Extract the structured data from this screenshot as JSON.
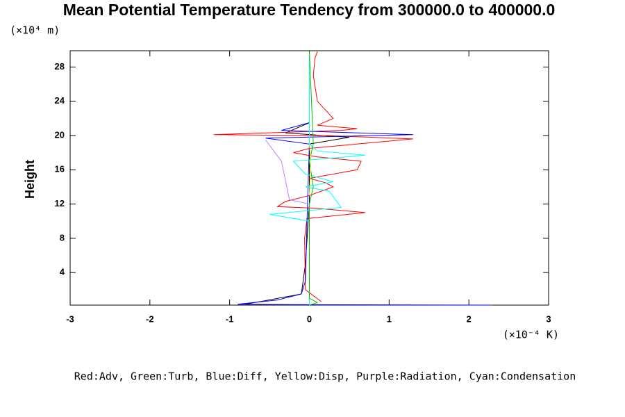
{
  "chart_data": {
    "type": "line",
    "title": "Mean Potential Temperature Tendency from 300000.0 to 400000.0",
    "y_unit": "(×10⁴ m)",
    "ylabel": "Height",
    "x_unit": "(×10⁻⁴ K)",
    "legend_text": "Red:Adv, Green:Turb, Blue:Diff, Yellow:Disp, Purple:Radiation, Cyan:Condensation",
    "xlim": [
      -3,
      3
    ],
    "ylim": [
      0.2,
      29.9
    ],
    "xticks": [
      -3,
      -2,
      -1,
      0,
      1,
      2,
      3
    ],
    "yticks": [
      4,
      8,
      12,
      16,
      20,
      24,
      28
    ],
    "series": [
      {
        "color": "#000000",
        "x": [
          -0.8,
          -0.1,
          -0.05,
          0.0,
          0.0,
          0.5,
          -0.3,
          0.0,
          0.0
        ],
        "y": [
          0.3,
          1.5,
          5,
          12,
          19,
          19.8,
          20.3,
          21.5,
          29.8
        ]
      },
      {
        "color": "#ff0000",
        "x": [
          0.15,
          -0.05,
          -0.06,
          -0.03,
          0.7,
          0.1,
          -0.4,
          -0.3,
          0.0,
          0.3,
          0.2,
          0.0,
          0.6,
          0.65,
          0.1,
          -0.2,
          0.0,
          1.3,
          0.2,
          -1.2,
          0.4,
          0.6,
          0.1,
          0.3,
          0.1,
          0.05,
          0.07,
          0.1
        ],
        "y": [
          0.6,
          2,
          8,
          10.3,
          11,
          11.5,
          11.7,
          12.3,
          13,
          14,
          14.5,
          15,
          16,
          17,
          17.5,
          18,
          18.5,
          19.6,
          20,
          20.1,
          20.6,
          20.8,
          21.2,
          22,
          24,
          27,
          29,
          29.8
        ]
      },
      {
        "color": "#0000ff",
        "x": [
          2.3,
          0.0,
          -0.9,
          -0.4,
          -0.1,
          -0.05,
          -0.03,
          0.0,
          -0.55,
          1.3,
          -0.35,
          0.0,
          0.0
        ],
        "y": [
          0.2,
          0.25,
          0.3,
          0.8,
          1.5,
          3,
          10,
          19,
          19.7,
          20.1,
          20.6,
          21.5,
          29.8
        ]
      },
      {
        "color": "#00ffff",
        "x": [
          0.0,
          0.0,
          -0.5,
          0.4,
          0.25,
          -0.05,
          0.3,
          -0.05,
          -0.2,
          0.7,
          0.1,
          0.0,
          0.0
        ],
        "y": [
          0.2,
          10,
          10.8,
          11.6,
          13.5,
          14,
          14.6,
          15.5,
          17,
          17.7,
          18.2,
          19,
          29.8
        ]
      },
      {
        "color": "#00c000",
        "x": [
          0.0,
          0.1,
          0.0,
          0.0,
          0.05,
          0.0,
          0.05,
          0.0
        ],
        "y": [
          0.2,
          0.5,
          1,
          12,
          14,
          17,
          19,
          29.8
        ]
      },
      {
        "color": "#ffff00",
        "x": [
          0.0,
          0.02,
          0.0
        ],
        "y": [
          13,
          17,
          19
        ]
      },
      {
        "color": "#c080ff",
        "x": [
          -0.55,
          -0.35,
          -0.25,
          0.0
        ],
        "y": [
          19.5,
          17,
          12.5,
          12
        ]
      }
    ]
  }
}
